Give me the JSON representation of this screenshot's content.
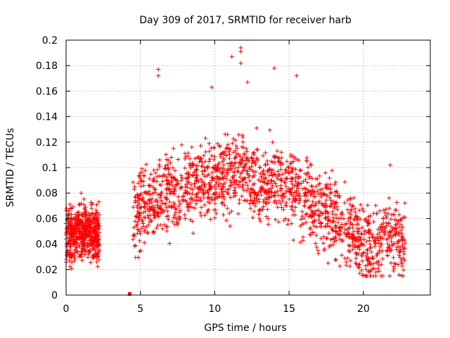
{
  "chart_data": {
    "type": "scatter",
    "title": "Day 309 of 2017, SRMTID for receiver harb",
    "xlabel": "GPS time / hours",
    "ylabel": "SRMTID / TECUs",
    "xlim": [
      0,
      24.5
    ],
    "ylim": [
      0,
      0.2
    ],
    "x_ticks": [
      "0",
      "5",
      "10",
      "15",
      "20"
    ],
    "y_ticks": [
      "0",
      "0.02",
      "0.04",
      "0.06",
      "0.08",
      "0.1",
      "0.12",
      "0.14",
      "0.16",
      "0.18",
      "0.2"
    ],
    "grid": true,
    "marker": "+",
    "color": "#ff0000",
    "series": [
      {
        "name": "SRMTID",
        "segments": [
          {
            "x_start": 0.0,
            "x_end": 2.25,
            "count": 520,
            "mean_profile": [
              [
                0.0,
                0.046
              ],
              [
                1.0,
                0.05
              ],
              [
                2.25,
                0.048
              ]
            ],
            "spread": 0.014,
            "range": [
              0.017,
              0.08
            ]
          },
          {
            "x_start": 4.5,
            "x_end": 22.8,
            "count": 1700,
            "mean_profile": [
              [
                4.5,
                0.062
              ],
              [
                6.0,
                0.075
              ],
              [
                8.0,
                0.085
              ],
              [
                10.0,
                0.09
              ],
              [
                11.7,
                0.102
              ],
              [
                13.0,
                0.088
              ],
              [
                14.5,
                0.09
              ],
              [
                16.0,
                0.075
              ],
              [
                18.0,
                0.062
              ],
              [
                19.3,
                0.048
              ],
              [
                20.5,
                0.035
              ],
              [
                21.5,
                0.048
              ],
              [
                22.8,
                0.04
              ]
            ],
            "spread": 0.02,
            "range": [
              0.015,
              0.194
            ]
          }
        ],
        "outliers": [
          {
            "x": 11.75,
            "y": 0.194
          },
          {
            "x": 11.75,
            "y": 0.191
          },
          {
            "x": 11.15,
            "y": 0.187
          },
          {
            "x": 11.75,
            "y": 0.182
          },
          {
            "x": 6.2,
            "y": 0.177
          },
          {
            "x": 14.0,
            "y": 0.178
          },
          {
            "x": 6.2,
            "y": 0.172
          },
          {
            "x": 15.5,
            "y": 0.172
          },
          {
            "x": 9.8,
            "y": 0.163
          },
          {
            "x": 12.2,
            "y": 0.167
          },
          {
            "x": 21.8,
            "y": 0.102
          },
          {
            "x": 20.2,
            "y": 0.015
          }
        ]
      }
    ],
    "annotations": [
      {
        "type": "marker",
        "x": 4.3,
        "y": 0.0,
        "shape": "square"
      }
    ]
  }
}
